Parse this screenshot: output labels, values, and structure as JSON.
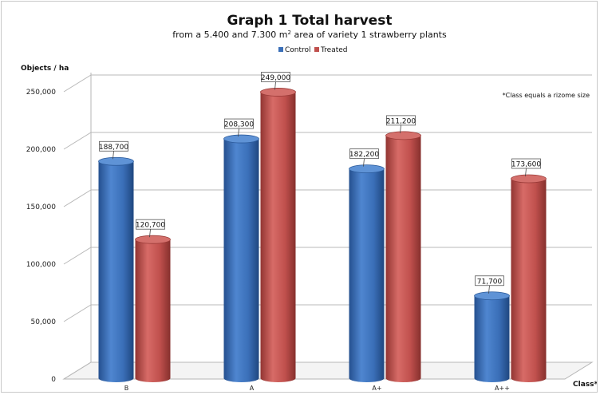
{
  "chart_data": {
    "type": "bar",
    "title": "Graph 1  Total harvest",
    "subtitle_pre": "from a 5.400 and 7.300 m",
    "subtitle_sup": "2",
    "subtitle_post": " area of variety 1 strawberry plants",
    "ylabel": "Objects / ha",
    "xlabel": "Class*",
    "note": "*Class equals a rizome size",
    "ylim": [
      0,
      250000
    ],
    "yticks": [
      0,
      50000,
      100000,
      150000,
      200000,
      250000
    ],
    "ytick_labels": [
      "0",
      "50,000",
      "100,000",
      "150,000",
      "200,000",
      "250,000"
    ],
    "categories": [
      "B",
      "A",
      "A+",
      "A++"
    ],
    "legend_position": "top-center",
    "grid": true,
    "series": [
      {
        "name": "Control",
        "color": "#3a6fb8",
        "values": [
          188700,
          208300,
          182200,
          71700
        ],
        "labels": [
          "188,700",
          "208,300",
          "182,200",
          "71,700"
        ]
      },
      {
        "name": "Treated",
        "color": "#c0504d",
        "values": [
          120700,
          249000,
          211200,
          173600
        ],
        "labels": [
          "120,700",
          "249,000",
          "211,200",
          "173,600"
        ]
      }
    ]
  }
}
